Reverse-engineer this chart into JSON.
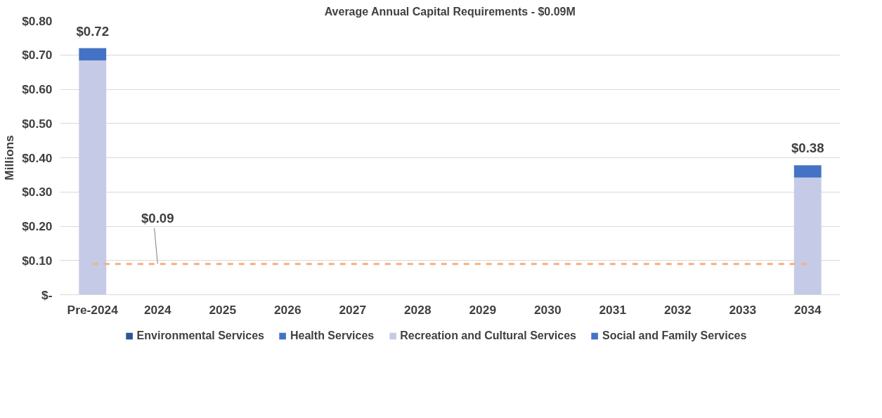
{
  "chart_data": {
    "type": "bar",
    "title": "Average Annual Capital Requirements - $0.09M",
    "ylabel": "Millions",
    "categories": [
      "Pre-2024",
      "2024",
      "2025",
      "2026",
      "2027",
      "2028",
      "2029",
      "2030",
      "2031",
      "2032",
      "2033",
      "2034"
    ],
    "stacked": true,
    "series": [
      {
        "name": "Environmental Services",
        "color": "#2f5597",
        "values": [
          null,
          null,
          null,
          null,
          null,
          null,
          null,
          null,
          null,
          null,
          null,
          null
        ]
      },
      {
        "name": "Health Services",
        "color": "#4472c4",
        "values": [
          null,
          null,
          null,
          null,
          null,
          null,
          null,
          null,
          null,
          null,
          null,
          null
        ]
      },
      {
        "name": "Recreation and Cultural Services",
        "color": "#c5cae7",
        "values": [
          0.684,
          null,
          null,
          null,
          null,
          null,
          null,
          null,
          null,
          null,
          null,
          0.342
        ]
      },
      {
        "name": "Social and Family Services",
        "color": "#4472c4",
        "values": [
          0.036,
          null,
          null,
          null,
          null,
          null,
          null,
          null,
          null,
          null,
          null,
          0.036
        ]
      }
    ],
    "totals": [
      "$0.72",
      null,
      null,
      null,
      null,
      null,
      null,
      null,
      null,
      null,
      null,
      "$0.38"
    ],
    "ref_lines": [
      {
        "axis": "y",
        "value": 0.09,
        "label": "$0.09",
        "color": "#f4b183",
        "line_style": "dashed"
      }
    ],
    "ylim": [
      0,
      0.8
    ],
    "yticks": [
      {
        "value": 0,
        "label": "$-"
      },
      {
        "value": 0.1,
        "label": "$0.10"
      },
      {
        "value": 0.2,
        "label": "$0.20"
      },
      {
        "value": 0.3,
        "label": "$0.30"
      },
      {
        "value": 0.4,
        "label": "$0.40"
      },
      {
        "value": 0.5,
        "label": "$0.50"
      },
      {
        "value": 0.6,
        "label": "$0.60"
      },
      {
        "value": 0.7,
        "label": "$0.70"
      },
      {
        "value": 0.8,
        "label": "$0.80"
      }
    ],
    "grid": "y",
    "legend": "bottom"
  }
}
